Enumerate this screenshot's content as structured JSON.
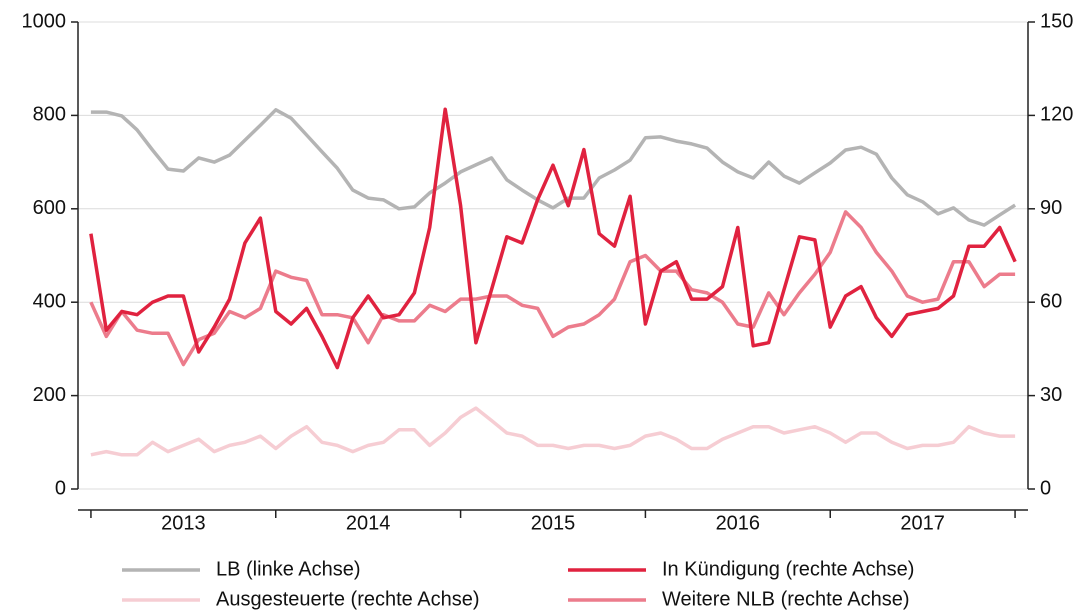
{
  "chart_data": {
    "type": "line",
    "x": [
      2013,
      2013.083,
      2013.167,
      2013.25,
      2013.333,
      2013.417,
      2013.5,
      2013.583,
      2013.667,
      2013.75,
      2013.833,
      2013.917,
      2014,
      2014.083,
      2014.167,
      2014.25,
      2014.333,
      2014.417,
      2014.5,
      2014.583,
      2014.667,
      2014.75,
      2014.833,
      2014.917,
      2015,
      2015.083,
      2015.167,
      2015.25,
      2015.333,
      2015.417,
      2015.5,
      2015.583,
      2015.667,
      2015.75,
      2015.833,
      2015.917,
      2016,
      2016.083,
      2016.167,
      2016.25,
      2016.333,
      2016.417,
      2016.5,
      2016.583,
      2016.667,
      2016.75,
      2016.833,
      2016.917,
      2017,
      2017.083,
      2017.167,
      2017.25,
      2017.333,
      2017.417,
      2017.5,
      2017.583,
      2017.667,
      2017.75,
      2017.833,
      2017.917,
      2018
    ],
    "series": [
      {
        "name": "LB (linke Achse)",
        "color": "#b4b4b4",
        "axis": "y",
        "values": [
          807,
          807,
          799,
          769,
          726,
          685,
          681,
          709,
          700,
          715,
          747,
          779,
          812,
          794,
          758,
          722,
          687,
          640,
          623,
          619,
          600,
          604,
          634,
          655,
          679,
          694,
          709,
          662,
          640,
          619,
          602,
          623,
          623,
          666,
          683,
          704,
          752,
          754,
          745,
          739,
          730,
          700,
          679,
          666,
          700,
          670,
          655,
          677,
          698,
          726,
          732,
          717,
          666,
          630,
          615,
          589,
          602,
          576,
          565,
          587,
          608
        ]
      },
      {
        "name": "In Kündigung (rechte Achse)",
        "color": "#e0223f",
        "axis": "y2",
        "values": [
          82,
          51,
          57,
          56,
          60,
          62,
          62,
          44,
          52,
          61,
          79,
          87,
          57,
          53,
          58,
          49,
          39,
          55,
          62,
          55,
          56,
          63,
          84,
          122,
          91,
          47,
          64,
          81,
          79,
          93,
          104,
          91,
          109,
          82,
          78,
          94,
          53,
          70,
          73,
          61,
          61,
          65,
          84,
          46,
          47,
          64,
          81,
          80,
          52,
          62,
          65,
          55,
          49,
          56,
          57,
          58,
          62,
          78,
          78,
          84,
          73
        ]
      },
      {
        "name": "Ausgesteuerte (rechte Achse)",
        "color": "#f6cdd3",
        "axis": "y2",
        "values": [
          11,
          12,
          11,
          11,
          15,
          12,
          14,
          16,
          12,
          14,
          15,
          17,
          13,
          17,
          20,
          15,
          14,
          12,
          14,
          15,
          19,
          19,
          14,
          18,
          23,
          26,
          22,
          18,
          17,
          14,
          14,
          13,
          14,
          14,
          13,
          14,
          17,
          18,
          16,
          13,
          13,
          16,
          18,
          20,
          20,
          18,
          19,
          20,
          18,
          15,
          18,
          18,
          15,
          13,
          14,
          14,
          15,
          20,
          18,
          17,
          17
        ]
      },
      {
        "name": "Weitere NLB (rechte Achse)",
        "color": "#ec7c8c",
        "axis": "y2",
        "values": [
          60,
          49,
          57,
          51,
          50,
          50,
          40,
          48,
          50,
          57,
          55,
          58,
          70,
          68,
          67,
          56,
          56,
          55,
          47,
          56,
          54,
          54,
          59,
          57,
          61,
          61,
          62,
          62,
          59,
          58,
          49,
          52,
          53,
          56,
          61,
          73,
          75,
          70,
          70,
          64,
          63,
          60,
          53,
          52,
          63,
          56,
          63,
          69,
          76,
          89,
          84,
          76,
          70,
          62,
          60,
          61,
          73,
          73,
          65,
          69,
          69
        ]
      }
    ],
    "xlim": [
      2012.93,
      2018.07
    ],
    "xticks": [
      {
        "value": 2013.5,
        "label": "2013"
      },
      {
        "value": 2014.5,
        "label": "2014"
      },
      {
        "value": 2015.5,
        "label": "2015"
      },
      {
        "value": 2016.5,
        "label": "2016"
      },
      {
        "value": 2017.5,
        "label": "2017"
      }
    ],
    "xtick_marks": [
      2013,
      2014,
      2015,
      2016,
      2017,
      2018
    ],
    "ylim": [
      0,
      1000
    ],
    "yticks": [
      0,
      200,
      400,
      600,
      800,
      1000
    ],
    "y2lim": [
      0,
      150
    ],
    "y2ticks": [
      0,
      30,
      60,
      90,
      120,
      150
    ],
    "grid": true,
    "legend": "bottom"
  }
}
